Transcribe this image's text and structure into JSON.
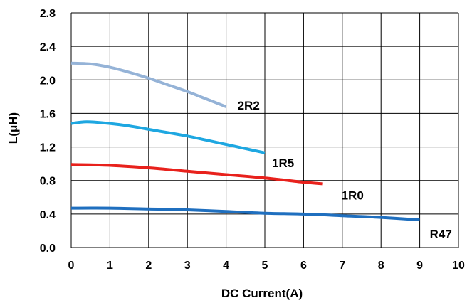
{
  "chart_data": {
    "type": "line",
    "title": "",
    "xlabel": "DC Current(A)",
    "ylabel": "L(μH)",
    "xlim": [
      0,
      10
    ],
    "ylim": [
      0,
      2.8
    ],
    "x_ticks": [
      "0",
      "1",
      "2",
      "3",
      "4",
      "5",
      "6",
      "7",
      "8",
      "9",
      "10"
    ],
    "y_ticks": [
      "0.0",
      "0.4",
      "0.8",
      "1.2",
      "1.6",
      "2.0",
      "2.4",
      "2.8"
    ],
    "grid": true,
    "series": [
      {
        "name": "2R2",
        "color": "#95b3d7",
        "x": [
          0,
          0.5,
          1,
          1.5,
          2,
          2.5,
          3,
          3.5,
          4
        ],
        "y": [
          2.2,
          2.19,
          2.15,
          2.09,
          2.02,
          1.94,
          1.86,
          1.77,
          1.68
        ]
      },
      {
        "name": "1R5",
        "color": "#1ea7e1",
        "x": [
          0,
          0.4,
          1,
          1.5,
          2,
          2.5,
          3,
          3.5,
          4,
          4.5,
          5
        ],
        "y": [
          1.48,
          1.5,
          1.48,
          1.45,
          1.41,
          1.37,
          1.33,
          1.28,
          1.23,
          1.18,
          1.13
        ]
      },
      {
        "name": "1R0",
        "color": "#e8211c",
        "x": [
          0,
          1,
          2,
          3,
          4,
          5,
          6,
          6.5
        ],
        "y": [
          0.99,
          0.98,
          0.95,
          0.91,
          0.87,
          0.83,
          0.78,
          0.76
        ]
      },
      {
        "name": "R47",
        "color": "#1f6fbf",
        "x": [
          0,
          1,
          2,
          3,
          4,
          5,
          6,
          7,
          8,
          9
        ],
        "y": [
          0.47,
          0.47,
          0.46,
          0.45,
          0.43,
          0.41,
          0.4,
          0.38,
          0.36,
          0.33
        ]
      }
    ]
  }
}
